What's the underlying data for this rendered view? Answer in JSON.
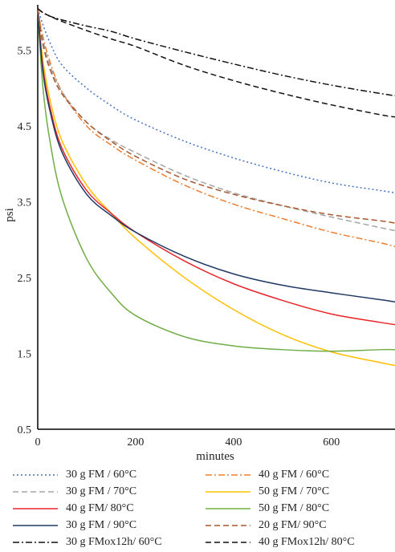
{
  "chart_data": {
    "type": "line",
    "title": "",
    "xlabel": "minutes",
    "ylabel": "psi",
    "xlim": [
      0,
      730
    ],
    "ylim": [
      0.5,
      6.1
    ],
    "xticks": [
      0,
      200,
      400,
      600
    ],
    "yticks": [
      0.5,
      1.5,
      2.5,
      3.5,
      4.5,
      5.5
    ],
    "xtick_labels": [
      "0",
      "200",
      "400",
      "600"
    ],
    "ytick_labels": [
      "0.5",
      "1.5",
      "2.5",
      "3.5",
      "4.5",
      "5.5"
    ],
    "grid": false,
    "legend_position": "bottom",
    "x": [
      0,
      10,
      25,
      50,
      100,
      150,
      200,
      300,
      400,
      500,
      600,
      700,
      730
    ],
    "series": [
      {
        "name": "30 g FM / 60°C",
        "color": "#4472c4",
        "dash": "dotted",
        "values": [
          6.05,
          5.85,
          5.6,
          5.3,
          5.0,
          4.77,
          4.58,
          4.3,
          4.08,
          3.9,
          3.75,
          3.65,
          3.62
        ]
      },
      {
        "name": "40 g FM / 60°C",
        "color": "#ed7d31",
        "dash": "dashdot",
        "values": [
          6.05,
          5.7,
          5.35,
          4.95,
          4.5,
          4.25,
          4.05,
          3.72,
          3.47,
          3.28,
          3.1,
          2.96,
          2.91
        ]
      },
      {
        "name": "30 g FM / 70°C",
        "color": "#a5a5a5",
        "dash": "dashed",
        "values": [
          6.05,
          5.65,
          5.3,
          4.95,
          4.55,
          4.32,
          4.15,
          3.85,
          3.62,
          3.45,
          3.3,
          3.16,
          3.12
        ]
      },
      {
        "name": "50 g FM / 70°C",
        "color": "#ffc000",
        "dash": "solid",
        "values": [
          6.05,
          5.4,
          4.85,
          4.3,
          3.72,
          3.35,
          3.02,
          2.5,
          2.08,
          1.75,
          1.52,
          1.38,
          1.34
        ]
      },
      {
        "name": "40 g FM/ 80°C",
        "color": "#e8262a",
        "dash": "solid",
        "values": [
          6.05,
          5.3,
          4.75,
          4.2,
          3.65,
          3.35,
          3.1,
          2.72,
          2.42,
          2.2,
          2.02,
          1.91,
          1.88
        ]
      },
      {
        "name": "50 g FM / 80°C",
        "color": "#70ad47",
        "dash": "solid",
        "values": [
          6.05,
          5.05,
          4.3,
          3.55,
          2.75,
          2.3,
          2.0,
          1.72,
          1.6,
          1.55,
          1.53,
          1.55,
          1.55
        ]
      },
      {
        "name": "30 g FM / 90°C",
        "color": "#1f3864",
        "dash": "solid",
        "values": [
          6.05,
          5.25,
          4.7,
          4.15,
          3.6,
          3.32,
          3.1,
          2.78,
          2.55,
          2.4,
          2.3,
          2.21,
          2.18
        ]
      },
      {
        "name": "20 g FM/ 90°C",
        "color": "#a9572d",
        "dash": "dashed",
        "values": [
          6.05,
          5.6,
          5.25,
          4.92,
          4.55,
          4.3,
          4.1,
          3.8,
          3.6,
          3.45,
          3.33,
          3.25,
          3.22
        ]
      },
      {
        "name": "30 g FMox12h/ 60°C",
        "color": "#111111",
        "dash": "dashdot",
        "values": [
          6.05,
          6.0,
          5.95,
          5.9,
          5.82,
          5.75,
          5.65,
          5.48,
          5.32,
          5.17,
          5.04,
          4.93,
          4.9
        ]
      },
      {
        "name": "40 g FMox12h/ 80°C",
        "color": "#111111",
        "dash": "dashed",
        "values": [
          6.05,
          6.0,
          5.95,
          5.88,
          5.76,
          5.65,
          5.55,
          5.3,
          5.1,
          4.93,
          4.78,
          4.65,
          4.62
        ]
      }
    ]
  }
}
